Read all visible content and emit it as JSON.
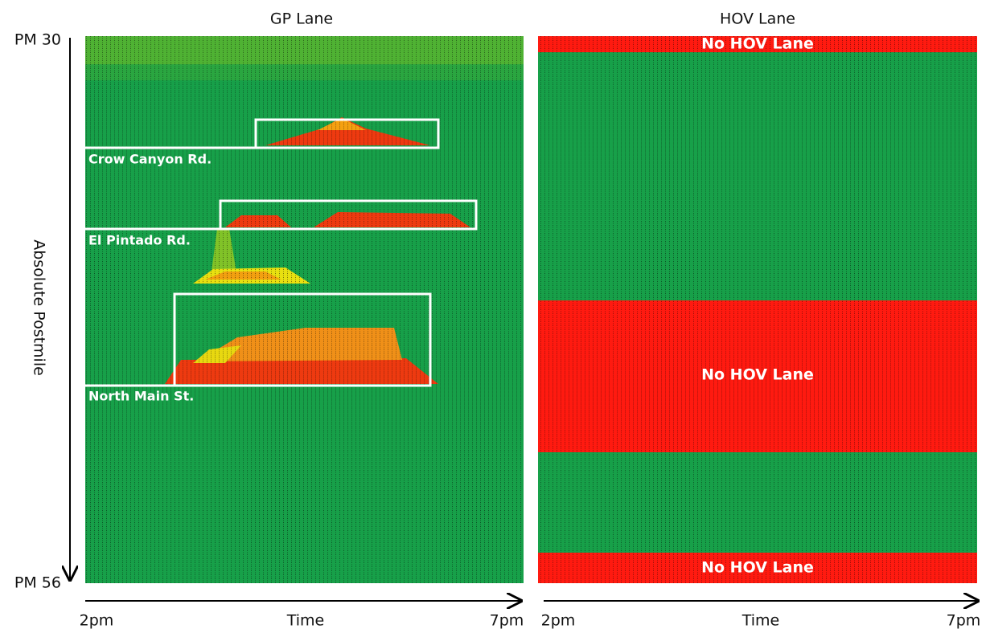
{
  "y_axis": {
    "label": "Absolute Postmile",
    "top": "PM 30",
    "bottom": "PM 56"
  },
  "panels": [
    {
      "title": "GP Lane",
      "x_start": "2pm",
      "x_label": "Time",
      "x_end": "7pm",
      "labels": [
        "Crow Canyon Rd.",
        "El Pintado Rd.",
        "North Main St."
      ]
    },
    {
      "title": "HOV Lane",
      "x_start": "2pm",
      "x_label": "Time",
      "x_end": "7pm",
      "labels": [
        "No HOV Lane",
        "No HOV Lane",
        "No HOV Lane"
      ]
    }
  ]
}
